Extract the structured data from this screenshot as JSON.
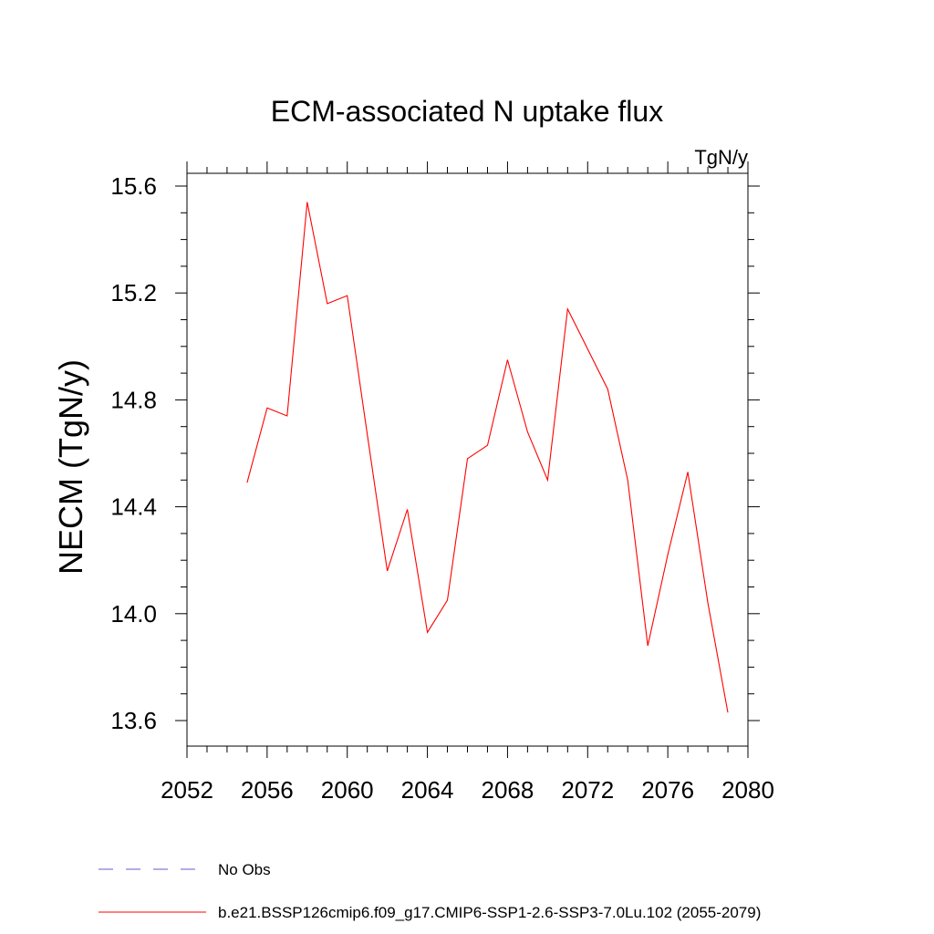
{
  "colors": {
    "series": "#ff0000",
    "obs": "#6a5acd",
    "axis": "#000000"
  },
  "chart_data": {
    "type": "line",
    "title": "ECM-associated N uptake flux",
    "units": "TgN/y",
    "xlabel": "",
    "ylabel": "NECM  (TgN/y)",
    "xlim": [
      2052,
      2080
    ],
    "ylim": [
      13.5,
      15.65
    ],
    "xticks": [
      2052,
      2056,
      2060,
      2064,
      2068,
      2072,
      2076,
      2080
    ],
    "xtick_labels": [
      "2052",
      "2056",
      "2060",
      "2064",
      "2068",
      "2072",
      "2076",
      "2080"
    ],
    "yticks": [
      13.6,
      14.0,
      14.4,
      14.8,
      15.2,
      15.6
    ],
    "ytick_labels": [
      "13.6",
      "14.0",
      "14.4",
      "14.8",
      "15.2",
      "15.6"
    ],
    "x_minor_step": 1,
    "y_minor_step": 0.1,
    "grid": false,
    "legend_position": "bottom",
    "series": [
      {
        "name": "b.e21.BSSP126cmip6.f09_g17.CMIP6-SSP1-2.6-SSP3-7.0Lu.102 (2055-2079)",
        "style": "solid",
        "x": [
          2055,
          2056,
          2057,
          2058,
          2059,
          2060,
          2061,
          2062,
          2063,
          2064,
          2065,
          2066,
          2067,
          2068,
          2069,
          2070,
          2071,
          2072,
          2073,
          2074,
          2075,
          2076,
          2077,
          2078,
          2079
        ],
        "y": [
          14.49,
          14.77,
          14.74,
          15.54,
          15.16,
          15.19,
          14.67,
          14.16,
          14.39,
          13.93,
          14.05,
          14.58,
          14.63,
          14.95,
          14.68,
          14.5,
          15.14,
          14.99,
          14.84,
          14.5,
          13.88,
          14.22,
          14.53,
          14.04,
          13.63
        ]
      }
    ],
    "legend": [
      {
        "label": "No Obs",
        "style": "dashed"
      },
      {
        "label": "b.e21.BSSP126cmip6.f09_g17.CMIP6-SSP1-2.6-SSP3-7.0Lu.102 (2055-2079)",
        "style": "solid"
      }
    ]
  }
}
